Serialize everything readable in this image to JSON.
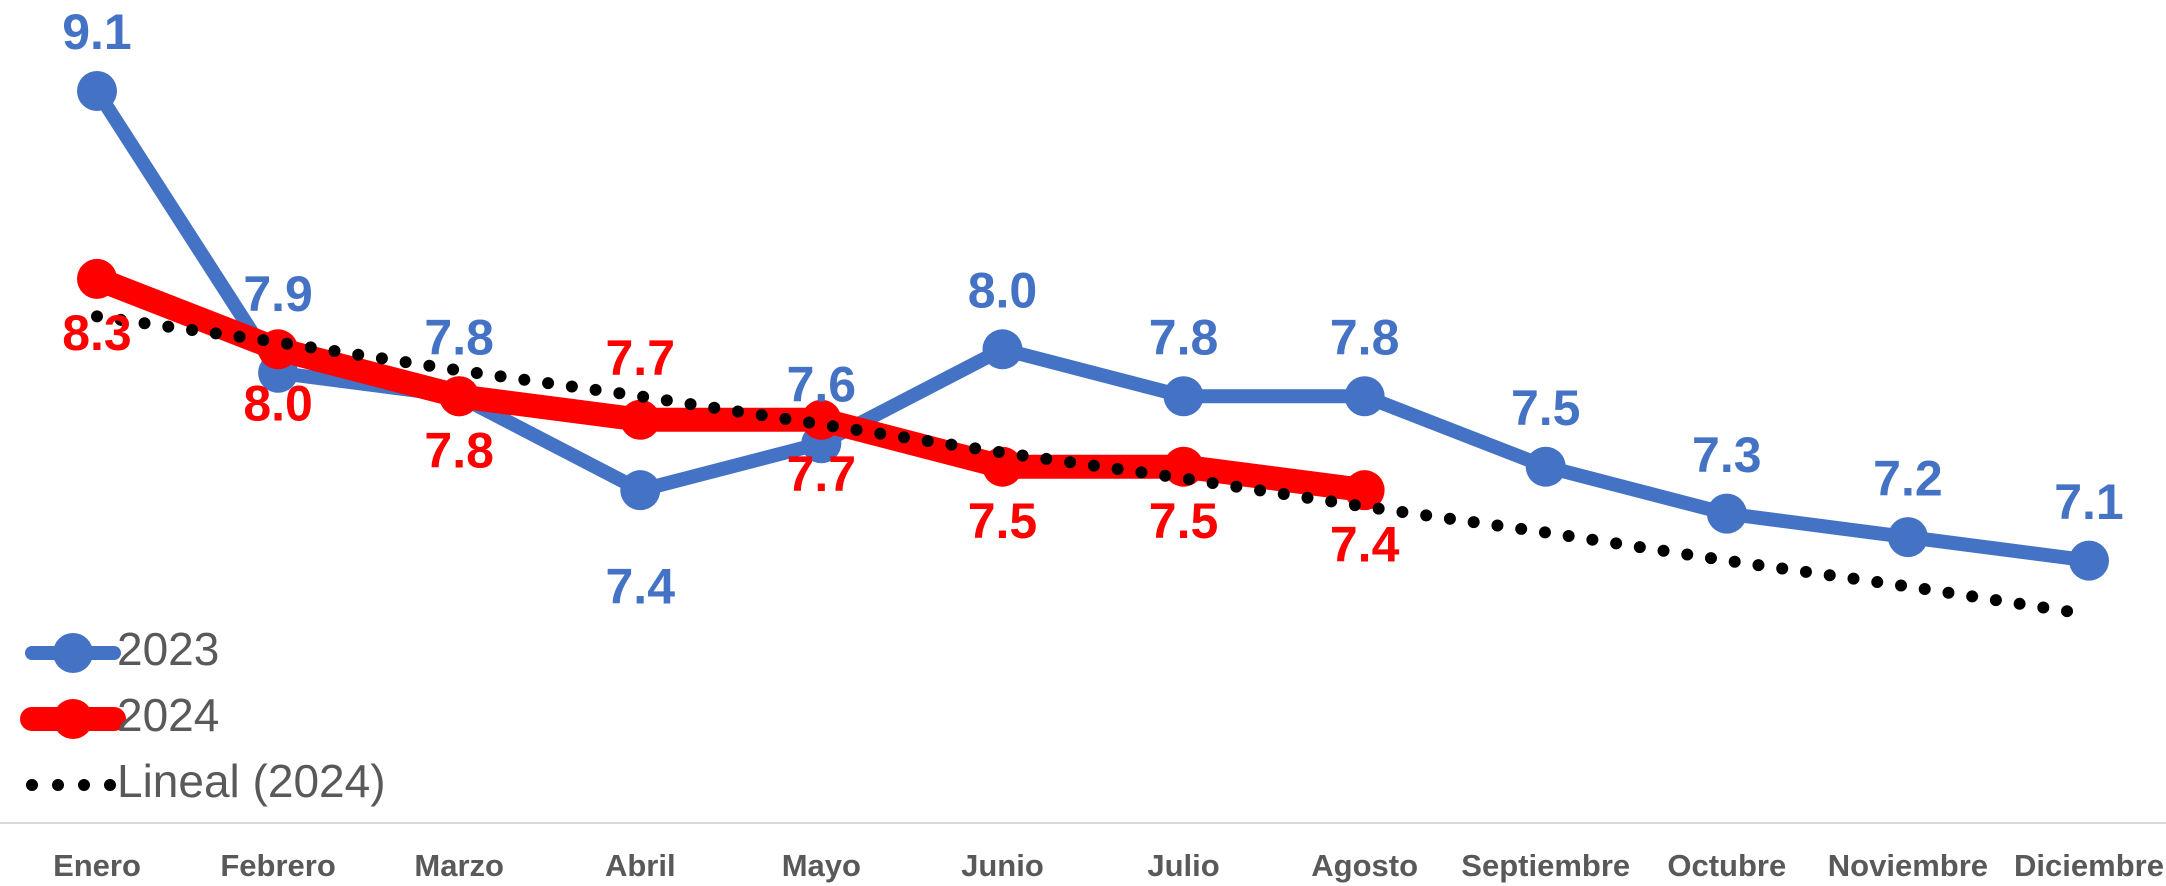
{
  "chart_data": {
    "type": "line",
    "categories": [
      "Enero",
      "Febrero",
      "Marzo",
      "Abril",
      "Mayo",
      "Junio",
      "Julio",
      "Agosto",
      "Septiembre",
      "Octubre",
      "Noviembre",
      "Diciembre"
    ],
    "series": [
      {
        "name": "2023",
        "color": "#4472c4",
        "values": [
          9.1,
          7.9,
          7.8,
          7.4,
          7.6,
          8.0,
          7.8,
          7.8,
          7.5,
          7.3,
          7.2,
          7.1
        ],
        "value_labels": [
          "9.1",
          "7.9",
          "7.8",
          "7.4",
          "7.6",
          "8.0",
          "7.8",
          "7.8",
          "7.5",
          "7.3",
          "7.2",
          "7.1"
        ]
      },
      {
        "name": "2024",
        "color": "#ff0000",
        "values": [
          8.3,
          8.0,
          7.8,
          7.7,
          7.7,
          7.5,
          7.5,
          7.4,
          null,
          null,
          null,
          null
        ],
        "value_labels": [
          "8.3",
          "8.0",
          "7.8",
          "7.7",
          "7.7",
          "7.5",
          "7.5",
          "7.4",
          null,
          null,
          null,
          null
        ]
      },
      {
        "name": "Lineal (2024)",
        "color": "#000000",
        "dotted": true,
        "values": [
          8.14,
          8.03,
          7.91,
          7.8,
          7.68,
          7.56,
          7.45,
          7.33,
          7.22,
          7.1,
          6.99,
          6.87
        ]
      }
    ],
    "ylim": [
      6.6,
      9.4
    ],
    "legend": "bottom-left"
  }
}
